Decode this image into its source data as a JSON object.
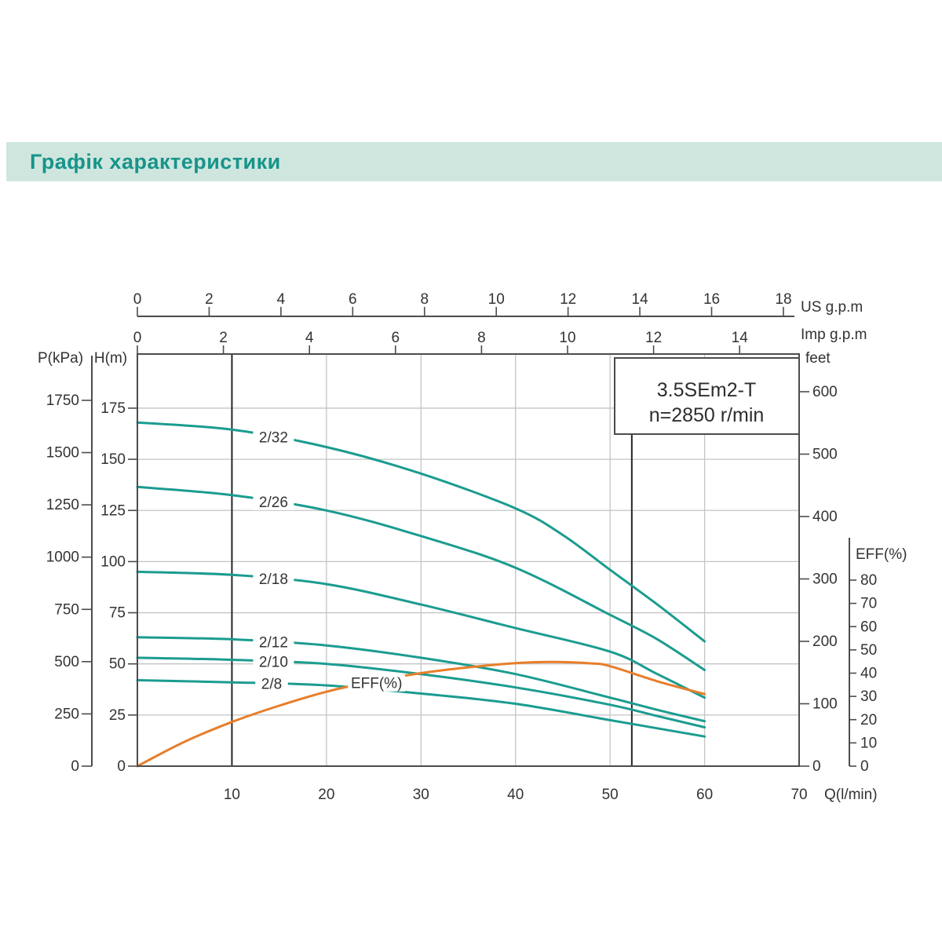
{
  "header": {
    "title": "Графік характеристики",
    "bg_color": "#cfe6df",
    "text_color": "#17948a"
  },
  "chart_data": {
    "type": "line",
    "title_box": {
      "line1": "3.5SEm2-T",
      "line2": "n=2850 r/min"
    },
    "axes": {
      "q_lmin": {
        "label": "Q(l/min)",
        "ticks": [
          10,
          20,
          30,
          40,
          50,
          60,
          70
        ],
        "range": [
          0,
          70
        ]
      },
      "us_gpm": {
        "label": "US  g.p.m",
        "ticks": [
          0,
          2,
          4,
          6,
          8,
          10,
          12,
          14,
          16,
          18
        ]
      },
      "imp_gpm": {
        "label": "Imp  g.p.m",
        "ticks": [
          0,
          2,
          4,
          6,
          8,
          10,
          12,
          14
        ]
      },
      "h_m": {
        "label": "H(m)",
        "ticks": [
          175,
          150,
          125,
          100,
          75,
          50,
          25,
          0
        ],
        "range": [
          0,
          201
        ]
      },
      "p_kpa": {
        "label": "P(kPa)",
        "ticks": [
          1750,
          1500,
          1250,
          1000,
          750,
          500,
          250,
          0
        ]
      },
      "feet": {
        "label": "feet",
        "ticks": [
          600,
          500,
          400,
          300,
          200,
          100,
          0
        ]
      },
      "eff_pct": {
        "label": "EFF(%)",
        "ticks": [
          80,
          70,
          60,
          50,
          40,
          30,
          20,
          10,
          0
        ]
      }
    },
    "grid": {
      "q_lines": [
        20,
        30,
        40,
        50,
        60
      ],
      "h_lines": [
        25,
        50,
        75,
        100,
        125,
        150,
        175
      ]
    },
    "operating_range_q": [
      10,
      52.3
    ],
    "series": [
      {
        "name": "2/32",
        "axis": "head",
        "label_q": 14.4,
        "points": [
          [
            0,
            168
          ],
          [
            10,
            164.5
          ],
          [
            20,
            156
          ],
          [
            30,
            143
          ],
          [
            40,
            126
          ],
          [
            45,
            113
          ],
          [
            50,
            96
          ],
          [
            55,
            79
          ],
          [
            60,
            61
          ]
        ]
      },
      {
        "name": "2/26",
        "axis": "head",
        "label_q": 14.4,
        "points": [
          [
            0,
            136.5
          ],
          [
            10,
            132.5
          ],
          [
            20,
            125
          ],
          [
            30,
            112.5
          ],
          [
            40,
            97
          ],
          [
            50,
            74
          ],
          [
            55,
            62
          ],
          [
            60,
            47
          ]
        ]
      },
      {
        "name": "2/18",
        "axis": "head",
        "label_q": 14.4,
        "points": [
          [
            0,
            95
          ],
          [
            10,
            93.5
          ],
          [
            20,
            89
          ],
          [
            30,
            79
          ],
          [
            40,
            67.5
          ],
          [
            50,
            56
          ],
          [
            55,
            45
          ],
          [
            60,
            33.5
          ]
        ]
      },
      {
        "name": "2/12",
        "axis": "head",
        "label_q": 14.4,
        "points": [
          [
            0,
            63
          ],
          [
            10,
            62
          ],
          [
            20,
            59
          ],
          [
            30,
            53
          ],
          [
            40,
            45
          ],
          [
            50,
            33.5
          ],
          [
            55,
            27.5
          ],
          [
            60,
            22
          ]
        ]
      },
      {
        "name": "2/10",
        "axis": "head",
        "label_q": 14.4,
        "points": [
          [
            0,
            53
          ],
          [
            10,
            52
          ],
          [
            20,
            50
          ],
          [
            30,
            45
          ],
          [
            40,
            38.5
          ],
          [
            50,
            30
          ],
          [
            55,
            24.5
          ],
          [
            60,
            19
          ]
        ]
      },
      {
        "name": "2/8",
        "axis": "head",
        "label_q": 14.2,
        "points": [
          [
            0,
            42
          ],
          [
            10,
            41
          ],
          [
            20,
            39.5
          ],
          [
            30,
            35.5
          ],
          [
            40,
            30.5
          ],
          [
            50,
            22.5
          ],
          [
            55,
            18.5
          ],
          [
            60,
            14.5
          ]
        ]
      },
      {
        "name": "EFF(%)",
        "axis": "eff",
        "label_q": 25.3,
        "label_dy": 3,
        "points": [
          [
            0,
            0
          ],
          [
            5,
            10.5
          ],
          [
            10,
            19
          ],
          [
            15,
            26
          ],
          [
            20,
            32
          ],
          [
            25,
            36.5
          ],
          [
            30,
            40
          ],
          [
            35,
            42.5
          ],
          [
            40,
            44.3
          ],
          [
            44,
            44.8
          ],
          [
            48,
            44.2
          ],
          [
            50,
            43
          ],
          [
            55,
            36.5
          ],
          [
            60,
            31
          ]
        ]
      }
    ],
    "colors": {
      "curve": "#1b9c90",
      "eff": "#e77e2b",
      "grid": "#c4c4c4",
      "axis": "#4c4c4c",
      "range_line": "#262626",
      "text": "#333333"
    }
  }
}
